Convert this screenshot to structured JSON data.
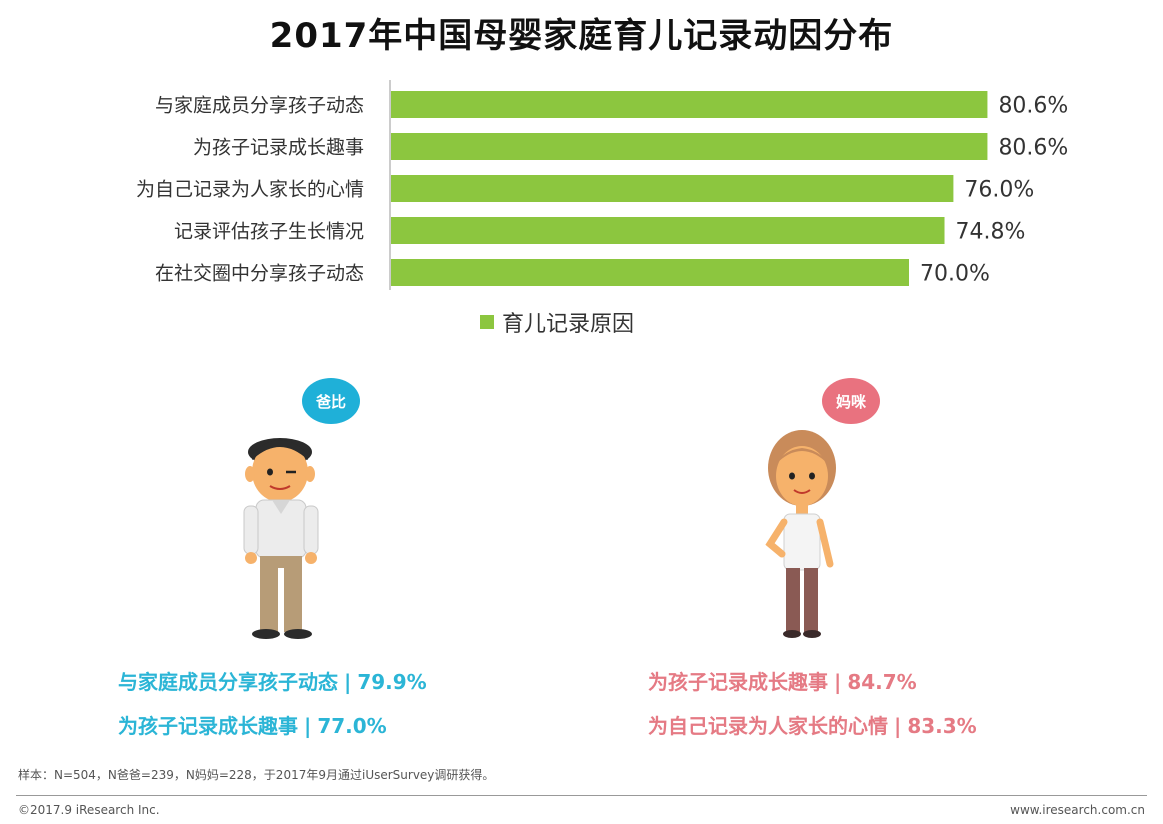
{
  "title": "2017年中国母婴家庭育儿记录动因分布",
  "chart_data": {
    "type": "bar",
    "orientation": "horizontal",
    "categories": [
      "与家庭成员分享孩子动态",
      "为孩子记录成长趣事",
      "为自己记录为人家长的心情",
      "记录评估孩子生长情况",
      "在社交圈中分享孩子动态"
    ],
    "values": [
      80.6,
      80.6,
      76.0,
      74.8,
      70.0
    ],
    "value_labels": [
      "80.6%",
      "80.6%",
      "76.0%",
      "74.8%",
      "70.0%"
    ],
    "series": [
      {
        "name": "育儿记录原因",
        "values": [
          80.6,
          80.6,
          76.0,
          74.8,
          70.0
        ]
      }
    ],
    "xlim": [
      0,
      100
    ],
    "grid": false,
    "legend": "bottom",
    "bar_color": "#8cc63f"
  },
  "personas": {
    "dad": {
      "label": "爸比",
      "color": "#2bb5d6",
      "stats": [
        {
          "text": "与家庭成员分享孩子动态",
          "value": "79.9%"
        },
        {
          "text": "为孩子记录成长趣事",
          "value": "77.0%"
        }
      ]
    },
    "mom": {
      "label": "妈咪",
      "color": "#e57a84",
      "stats": [
        {
          "text": "为孩子记录成长趣事",
          "value": "84.7%"
        },
        {
          "text": "为自己记录为人家长的心情",
          "value": "83.3%"
        }
      ]
    }
  },
  "separator": "|",
  "footnote": "样本：N=504，N爸爸=239，N妈妈=228，于2017年9月通过iUserSurvey调研获得。",
  "copyright": "©2017.9 iResearch Inc.",
  "website": "www.iresearch.com.cn"
}
